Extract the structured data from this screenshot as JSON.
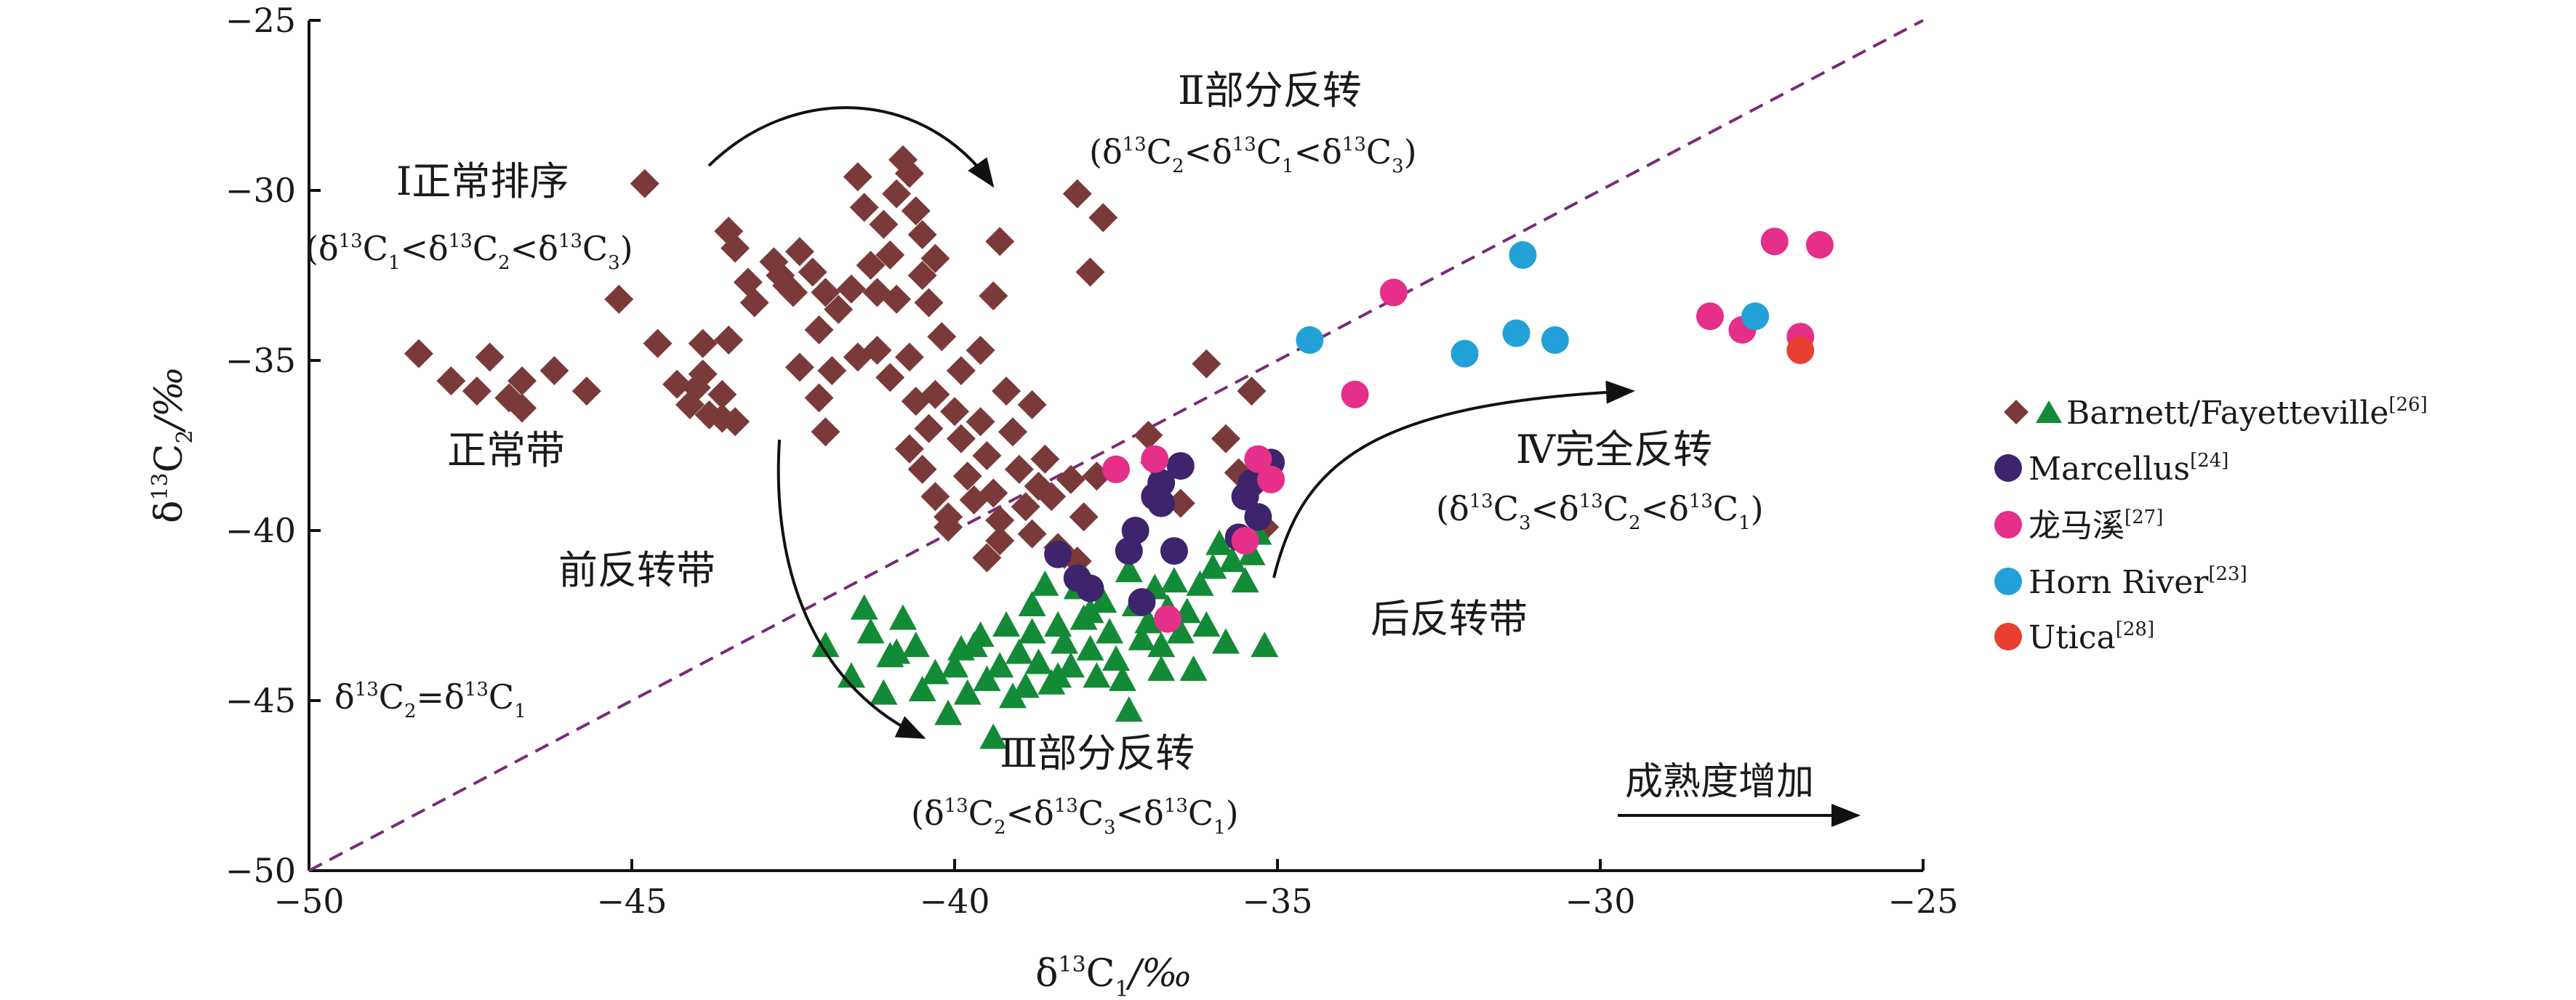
{
  "chart_data": {
    "type": "scatter",
    "xlim": [
      -50,
      -25
    ],
    "ylim": [
      -50,
      -25
    ],
    "x_ticks": [
      -50,
      -45,
      -40,
      -35,
      -30,
      -25
    ],
    "y_ticks": [
      -50,
      -45,
      -40,
      -35,
      -30,
      -25
    ],
    "x_tick_labels": [
      "−50",
      "−45",
      "−40",
      "−35",
      "−30",
      "−25"
    ],
    "y_tick_labels": [
      "−50",
      "−45",
      "−40",
      "−35",
      "−30",
      "−25"
    ],
    "xlabel": {
      "delta": "δ",
      "sup": "13",
      "main": "C",
      "sub": "1",
      "unit": "/‰"
    },
    "ylabel": {
      "delta": "δ",
      "sup": "13",
      "main": "C",
      "sub": "2",
      "unit": "/‰"
    },
    "grid": false,
    "legend_placement": "right",
    "reference_line": {
      "from": [
        -50,
        -50
      ],
      "to": [
        -25,
        -25
      ],
      "style": "dashed",
      "color": "#7a2a78"
    },
    "series": [
      {
        "name": "Barnett/Fayetteville",
        "cite": "[26]",
        "marker": "diamond",
        "color": "#7b3a3a",
        "points": [
          [
            -48.3,
            -34.8
          ],
          [
            -47.8,
            -35.6
          ],
          [
            -47.4,
            -35.9
          ],
          [
            -47.2,
            -34.9
          ],
          [
            -46.9,
            -36.1
          ],
          [
            -46.7,
            -35.6
          ],
          [
            -46.7,
            -36.4
          ],
          [
            -46.2,
            -35.3
          ],
          [
            -45.7,
            -35.9
          ],
          [
            -45.2,
            -33.2
          ],
          [
            -44.8,
            -29.8
          ],
          [
            -44.6,
            -34.5
          ],
          [
            -44.3,
            -35.7
          ],
          [
            -44.1,
            -36.3
          ],
          [
            -44.0,
            -35.8
          ],
          [
            -43.8,
            -36.6
          ],
          [
            -43.6,
            -36.0
          ],
          [
            -43.5,
            -34.4
          ],
          [
            -43.9,
            -34.5
          ],
          [
            -43.9,
            -35.4
          ],
          [
            -43.6,
            -36.7
          ],
          [
            -43.4,
            -36.8
          ],
          [
            -43.5,
            -31.2
          ],
          [
            -43.4,
            -31.7
          ],
          [
            -43.2,
            -32.7
          ],
          [
            -43.1,
            -33.3
          ],
          [
            -42.8,
            -32.1
          ],
          [
            -42.7,
            -32.5
          ],
          [
            -42.6,
            -32.8
          ],
          [
            -42.5,
            -33.0
          ],
          [
            -42.4,
            -31.8
          ],
          [
            -42.2,
            -32.4
          ],
          [
            -42.1,
            -34.1
          ],
          [
            -42.0,
            -33.0
          ],
          [
            -41.8,
            -33.5
          ],
          [
            -41.6,
            -32.9
          ],
          [
            -41.5,
            -29.6
          ],
          [
            -41.4,
            -30.5
          ],
          [
            -41.3,
            -32.2
          ],
          [
            -41.2,
            -34.7
          ],
          [
            -41.1,
            -31.0
          ],
          [
            -41.0,
            -31.9
          ],
          [
            -40.9,
            -30.1
          ],
          [
            -40.8,
            -29.1
          ],
          [
            -40.7,
            -29.5
          ],
          [
            -40.6,
            -30.6
          ],
          [
            -40.5,
            -31.3
          ],
          [
            -40.5,
            -32.5
          ],
          [
            -40.4,
            -33.3
          ],
          [
            -40.3,
            -32.0
          ],
          [
            -40.9,
            -33.2
          ],
          [
            -40.2,
            -34.3
          ],
          [
            -40.7,
            -34.9
          ],
          [
            -41.2,
            -33.0
          ],
          [
            -41.9,
            -35.3
          ],
          [
            -42.1,
            -36.1
          ],
          [
            -42.4,
            -35.2
          ],
          [
            -42.0,
            -37.1
          ],
          [
            -41.5,
            -34.9
          ],
          [
            -41.0,
            -35.5
          ],
          [
            -40.7,
            -37.6
          ],
          [
            -40.5,
            -38.2
          ],
          [
            -40.3,
            -39.0
          ],
          [
            -40.1,
            -39.6
          ],
          [
            -40.0,
            -36.5
          ],
          [
            -39.9,
            -37.3
          ],
          [
            -39.8,
            -38.4
          ],
          [
            -39.7,
            -39.1
          ],
          [
            -39.6,
            -36.8
          ],
          [
            -39.5,
            -37.8
          ],
          [
            -39.4,
            -38.9
          ],
          [
            -39.3,
            -39.7
          ],
          [
            -39.3,
            -40.3
          ],
          [
            -39.2,
            -35.9
          ],
          [
            -39.1,
            -37.1
          ],
          [
            -39.0,
            -38.2
          ],
          [
            -38.9,
            -39.3
          ],
          [
            -38.8,
            -40.1
          ],
          [
            -38.6,
            -37.9
          ],
          [
            -38.5,
            -39.0
          ],
          [
            -38.4,
            -40.5
          ],
          [
            -38.2,
            -38.5
          ],
          [
            -38.0,
            -39.6
          ],
          [
            -38.8,
            -36.3
          ],
          [
            -39.9,
            -35.3
          ],
          [
            -39.6,
            -34.7
          ],
          [
            -39.4,
            -33.1
          ],
          [
            -40.1,
            -39.9
          ],
          [
            -40.4,
            -37.0
          ],
          [
            -40.6,
            -36.2
          ],
          [
            -40.3,
            -36.0
          ],
          [
            -38.7,
            -38.7
          ],
          [
            -38.3,
            -40.7
          ],
          [
            -38.1,
            -40.9
          ],
          [
            -37.8,
            -38.4
          ],
          [
            -39.5,
            -40.8
          ],
          [
            -39.3,
            -31.5
          ],
          [
            -38.1,
            -30.1
          ],
          [
            -37.9,
            -32.4
          ],
          [
            -37.7,
            -30.8
          ],
          [
            -37.0,
            -37.2
          ],
          [
            -36.9,
            -38.0
          ],
          [
            -36.5,
            -39.2
          ],
          [
            -36.1,
            -35.1
          ],
          [
            -35.8,
            -37.3
          ],
          [
            -35.6,
            -38.3
          ],
          [
            -35.4,
            -35.9
          ],
          [
            -35.2,
            -39.9
          ]
        ]
      },
      {
        "name": "Barnett/Fayetteville",
        "cite": "[26]",
        "marker": "triangle",
        "color": "#138a35",
        "points": [
          [
            -42.0,
            -43.4
          ],
          [
            -41.6,
            -44.3
          ],
          [
            -41.4,
            -42.3
          ],
          [
            -41.3,
            -43.0
          ],
          [
            -41.1,
            -44.8
          ],
          [
            -41.0,
            -43.7
          ],
          [
            -40.8,
            -42.6
          ],
          [
            -40.6,
            -43.4
          ],
          [
            -40.5,
            -44.7
          ],
          [
            -40.3,
            -44.2
          ],
          [
            -40.1,
            -45.4
          ],
          [
            -40.0,
            -44.0
          ],
          [
            -39.9,
            -43.5
          ],
          [
            -39.8,
            -44.8
          ],
          [
            -39.6,
            -43.1
          ],
          [
            -39.5,
            -44.4
          ],
          [
            -39.4,
            -46.1
          ],
          [
            -39.3,
            -44.0
          ],
          [
            -39.2,
            -42.8
          ],
          [
            -39.0,
            -43.6
          ],
          [
            -38.9,
            -44.6
          ],
          [
            -38.8,
            -42.2
          ],
          [
            -38.7,
            -43.9
          ],
          [
            -38.6,
            -41.6
          ],
          [
            -38.5,
            -44.5
          ],
          [
            -38.4,
            -42.8
          ],
          [
            -38.3,
            -43.3
          ],
          [
            -38.2,
            -44.0
          ],
          [
            -38.1,
            -41.7
          ],
          [
            -38.0,
            -42.6
          ],
          [
            -37.9,
            -43.5
          ],
          [
            -37.8,
            -44.3
          ],
          [
            -37.7,
            -42.1
          ],
          [
            -37.6,
            -43.0
          ],
          [
            -37.5,
            -43.8
          ],
          [
            -37.4,
            -44.4
          ],
          [
            -37.3,
            -45.3
          ],
          [
            -37.3,
            -41.2
          ],
          [
            -37.2,
            -42.2
          ],
          [
            -37.1,
            -43.2
          ],
          [
            -37.0,
            -42.7
          ],
          [
            -36.9,
            -41.7
          ],
          [
            -36.8,
            -43.4
          ],
          [
            -36.7,
            -42.3
          ],
          [
            -36.6,
            -41.5
          ],
          [
            -36.5,
            -43.0
          ],
          [
            -36.4,
            -42.4
          ],
          [
            -36.3,
            -44.1
          ],
          [
            -36.2,
            -41.6
          ],
          [
            -36.1,
            -42.8
          ],
          [
            -36.0,
            -41.1
          ],
          [
            -35.9,
            -40.4
          ],
          [
            -35.8,
            -43.3
          ],
          [
            -35.7,
            -40.9
          ],
          [
            -35.5,
            -41.5
          ],
          [
            -35.4,
            -40.7
          ],
          [
            -35.3,
            -40.1
          ],
          [
            -35.2,
            -43.4
          ],
          [
            -39.7,
            -43.4
          ],
          [
            -40.9,
            -43.6
          ],
          [
            -38.8,
            -43.0
          ],
          [
            -37.9,
            -42.4
          ],
          [
            -36.8,
            -44.1
          ],
          [
            -38.4,
            -44.3
          ],
          [
            -39.1,
            -44.9
          ]
        ]
      },
      {
        "name": "Marcellus",
        "cite": "[24]",
        "marker": "circle",
        "color": "#3d246c",
        "points": [
          [
            -38.4,
            -40.7
          ],
          [
            -38.1,
            -41.4
          ],
          [
            -37.9,
            -41.7
          ],
          [
            -37.3,
            -40.6
          ],
          [
            -37.2,
            -40.0
          ],
          [
            -37.1,
            -42.1
          ],
          [
            -36.9,
            -39.0
          ],
          [
            -36.8,
            -38.6
          ],
          [
            -36.8,
            -39.2
          ],
          [
            -36.6,
            -40.6
          ],
          [
            -36.5,
            -38.1
          ],
          [
            -35.6,
            -40.2
          ],
          [
            -35.5,
            -39.0
          ],
          [
            -35.4,
            -38.6
          ],
          [
            -35.3,
            -39.6
          ],
          [
            -35.1,
            -38.0
          ]
        ]
      },
      {
        "name": "龙马溪",
        "cite": "[27]",
        "marker": "circle",
        "color": "#e52f88",
        "points": [
          [
            -37.5,
            -38.2
          ],
          [
            -36.9,
            -37.9
          ],
          [
            -36.7,
            -42.6
          ],
          [
            -35.5,
            -40.3
          ],
          [
            -35.3,
            -37.9
          ],
          [
            -35.1,
            -38.5
          ],
          [
            -33.8,
            -36.0
          ],
          [
            -33.2,
            -33.0
          ],
          [
            -28.3,
            -33.7
          ],
          [
            -27.8,
            -34.1
          ],
          [
            -27.3,
            -31.5
          ],
          [
            -26.9,
            -34.3
          ],
          [
            -26.6,
            -31.6
          ]
        ]
      },
      {
        "name": "Horn River",
        "cite": "[23]",
        "marker": "circle",
        "color": "#22a0d8",
        "points": [
          [
            -34.5,
            -34.4
          ],
          [
            -32.1,
            -34.8
          ],
          [
            -31.3,
            -34.2
          ],
          [
            -31.2,
            -31.9
          ],
          [
            -30.7,
            -34.4
          ],
          [
            -27.6,
            -33.7
          ]
        ]
      },
      {
        "name": "Utica",
        "cite": "[28]",
        "marker": "circle",
        "color": "#e84030",
        "points": [
          [
            -26.9,
            -34.7
          ]
        ]
      }
    ],
    "legend": [
      {
        "markers": [
          "diamond",
          "triangle"
        ],
        "name": "Barnett/Fayetteville",
        "cite": "[26]"
      },
      {
        "markers": [
          "circle"
        ],
        "name": "Marcellus",
        "cite": "[24]",
        "color": "#3d246c"
      },
      {
        "markers": [
          "circle"
        ],
        "name": "龙马溪",
        "cite": "[27]",
        "color": "#e52f88"
      },
      {
        "markers": [
          "circle"
        ],
        "name": "Horn River",
        "cite": "[23]",
        "color": "#22a0d8"
      },
      {
        "markers": [
          "circle"
        ],
        "name": "Utica",
        "cite": "[28]",
        "color": "#e84030"
      }
    ],
    "annotations": {
      "zone1_title": "Ⅰ正常排序",
      "zone1_formula": "(δ13C1<δ13C2<δ13C3)",
      "zone2_title": "Ⅱ部分反转",
      "zone2_formula": "(δ13C2<δ13C1<δ13C3)",
      "zone3_title": "Ⅲ部分反转",
      "zone3_formula": "(δ13C2<δ13C3<δ13C1)",
      "zone4_title": "Ⅳ完全反转",
      "zone4_formula": "(δ13C3<δ13C2<δ13C1)",
      "normal_zone": "正常带",
      "pre_reversal_zone": "前反转带",
      "post_reversal_zone": "后反转带",
      "equality_line": "δ13C2=δ13C1",
      "maturity": "成熟度增加"
    }
  }
}
